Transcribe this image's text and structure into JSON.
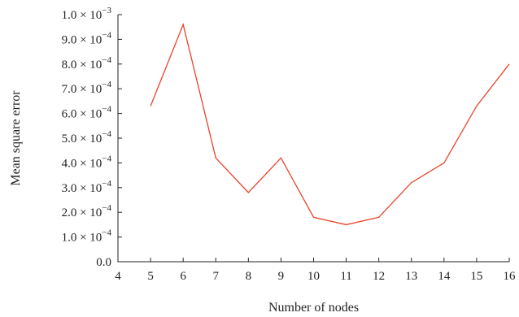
{
  "chart_data": {
    "type": "line",
    "xlabel": "Number of nodes",
    "ylabel": "Mean square error",
    "xlim": [
      4,
      16
    ],
    "ylim": [
      0,
      0.001
    ],
    "x_ticks": [
      4,
      5,
      6,
      7,
      8,
      9,
      10,
      11,
      12,
      13,
      14,
      15,
      16
    ],
    "x_tick_labels": [
      "4",
      "5",
      "6",
      "7",
      "8",
      "9",
      "10",
      "11",
      "12",
      "13",
      "14",
      "15",
      "16"
    ],
    "y_ticks": [
      0,
      0.0001,
      0.0002,
      0.0003,
      0.0004,
      0.0005,
      0.0006,
      0.0007,
      0.0008,
      0.0009,
      0.001
    ],
    "y_tick_labels": [
      {
        "mantissa": "0.0",
        "exponent": ""
      },
      {
        "mantissa": "1.0 × 10",
        "exponent": "−4"
      },
      {
        "mantissa": "2.0 × 10",
        "exponent": "−4"
      },
      {
        "mantissa": "3.0 × 10",
        "exponent": "−4"
      },
      {
        "mantissa": "4.0 × 10",
        "exponent": "−4"
      },
      {
        "mantissa": "5.0 × 10",
        "exponent": "−4"
      },
      {
        "mantissa": "6.0 × 10",
        "exponent": "−4"
      },
      {
        "mantissa": "7.0 × 10",
        "exponent": "−4"
      },
      {
        "mantissa": "8.0 × 10",
        "exponent": "−4"
      },
      {
        "mantissa": "9.0 × 10",
        "exponent": "−4"
      },
      {
        "mantissa": "1.0 × 10",
        "exponent": "−3"
      }
    ],
    "grid": false,
    "series": [
      {
        "color": "#e8442a",
        "x": [
          5,
          6,
          7,
          8,
          9,
          10,
          11,
          12,
          13,
          14,
          15,
          16
        ],
        "y": [
          0.00063,
          0.00096,
          0.00042,
          0.00028,
          0.00042,
          0.00018,
          0.00015,
          0.00018,
          0.00032,
          0.0004,
          0.00063,
          0.0008
        ]
      }
    ]
  }
}
